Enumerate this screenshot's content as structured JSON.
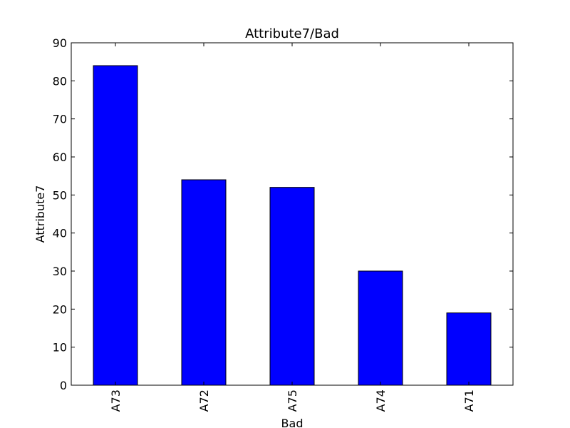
{
  "chart_data": {
    "type": "bar",
    "title": "Attribute7/Bad",
    "xlabel": "Bad",
    "ylabel": "Attribute7",
    "categories": [
      "A73",
      "A72",
      "A75",
      "A74",
      "A71"
    ],
    "values": [
      84,
      54,
      52,
      30,
      19
    ],
    "ylim": [
      0,
      90
    ],
    "yticks": [
      0,
      10,
      20,
      30,
      40,
      50,
      60,
      70,
      80,
      90
    ],
    "bar_color": "#0000ff",
    "grid": false,
    "legend": "none",
    "x_tick_rotation": "vertical"
  }
}
